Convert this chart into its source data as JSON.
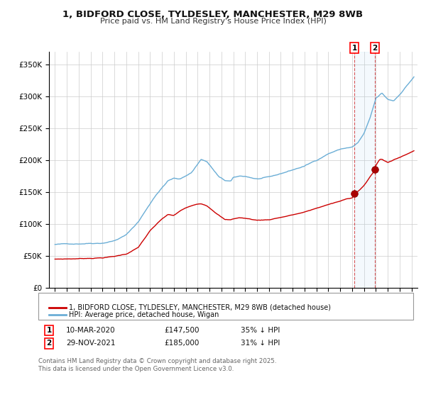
{
  "title_line1": "1, BIDFORD CLOSE, TYLDESLEY, MANCHESTER, M29 8WB",
  "title_line2": "Price paid vs. HM Land Registry's House Price Index (HPI)",
  "legend_label1": "1, BIDFORD CLOSE, TYLDESLEY, MANCHESTER, M29 8WB (detached house)",
  "legend_label2": "HPI: Average price, detached house, Wigan",
  "annotation1": {
    "num": "1",
    "date": "10-MAR-2020",
    "price": "£147,500",
    "desc": "35% ↓ HPI"
  },
  "annotation2": {
    "num": "2",
    "date": "29-NOV-2021",
    "price": "£185,000",
    "desc": "31% ↓ HPI"
  },
  "sale1_year": 2020.19,
  "sale1_price": 147500,
  "sale2_year": 2021.91,
  "sale2_price": 185000,
  "copyright": "Contains HM Land Registry data © Crown copyright and database right 2025.\nThis data is licensed under the Open Government Licence v3.0.",
  "background_color": "#ffffff",
  "plot_bg_color": "#ffffff",
  "grid_color": "#cccccc",
  "hpi_color": "#6baed6",
  "price_color": "#cc0000",
  "ylim": [
    0,
    370000
  ],
  "xlim_start": 1994.5,
  "xlim_end": 2025.5
}
